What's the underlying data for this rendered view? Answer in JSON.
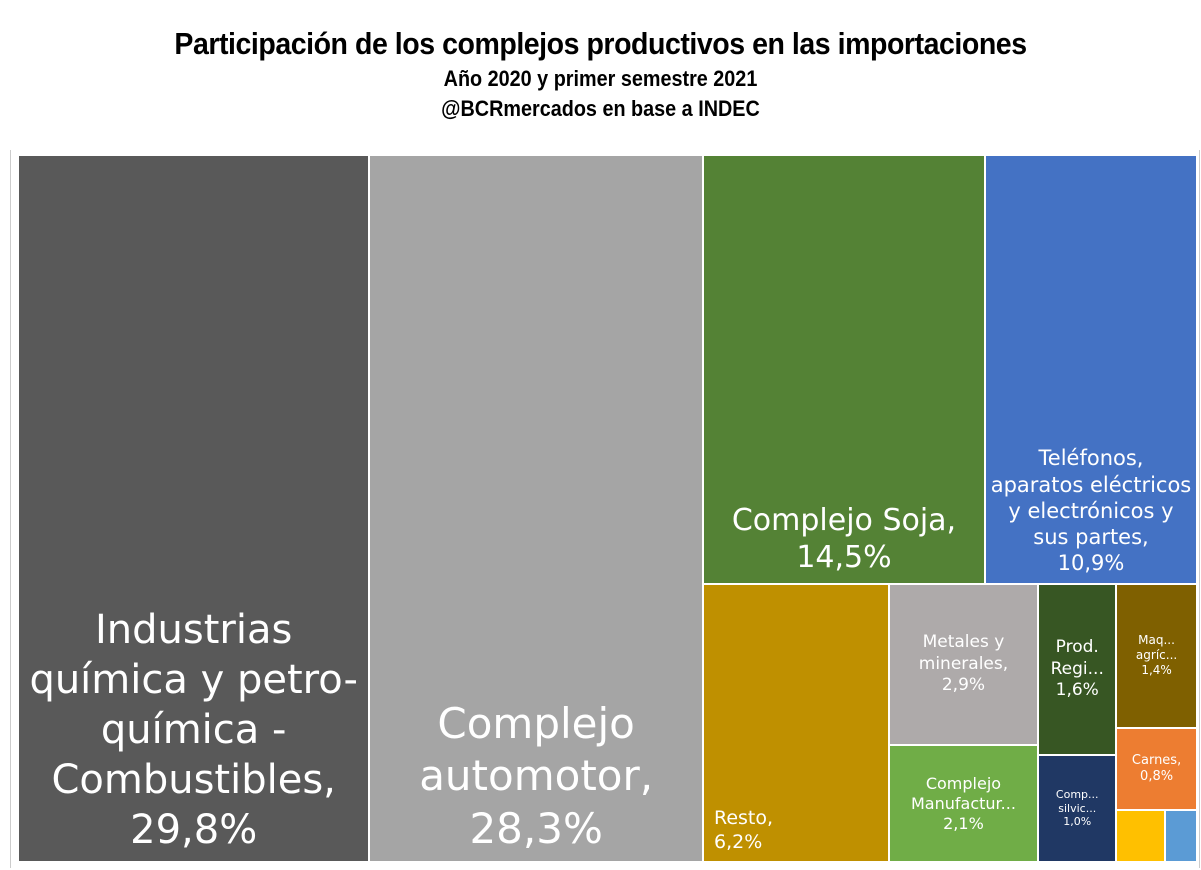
{
  "chart_data": {
    "type": "treemap",
    "title": "Participación de los complejos productivos en las importaciones",
    "subtitle": [
      "Año 2020 y primer semestre 2021",
      "@BCRmercados en base a INDEC"
    ],
    "categories": [
      "Industrias química y petro-química - Combustibles,",
      "Complejo automotor,",
      "Complejo Soja,",
      "Teléfonos, aparatos eléctricos y electrónicos y sus partes,",
      "Resto,",
      "Metales y minerales,",
      "Complejo Manufactur...",
      "Prod. Regi...",
      "Comp... silvic...",
      "Maq... agríc...",
      "Carnes,",
      null,
      null
    ],
    "values": [
      29.8,
      28.3,
      14.5,
      10.9,
      6.2,
      2.9,
      2.1,
      1.6,
      1.0,
      1.4,
      0.8,
      0.3,
      0.2
    ],
    "value_labels": [
      "29,8%",
      "28,3%",
      "14,5%",
      "10,9%",
      "6,2%",
      "2,9%",
      "2,1%",
      "1,6%",
      "1,0%",
      "1,4%",
      "0,8%",
      null,
      null
    ],
    "colors": [
      "#595959",
      "#a5a5a5",
      "#548235",
      "#4472c4",
      "#bf9000",
      "#aeaaaa",
      "#70ad47",
      "#375623",
      "#203864",
      "#7f6000",
      "#ed7d31",
      "#ffc000",
      "#5b9bd5"
    ]
  }
}
